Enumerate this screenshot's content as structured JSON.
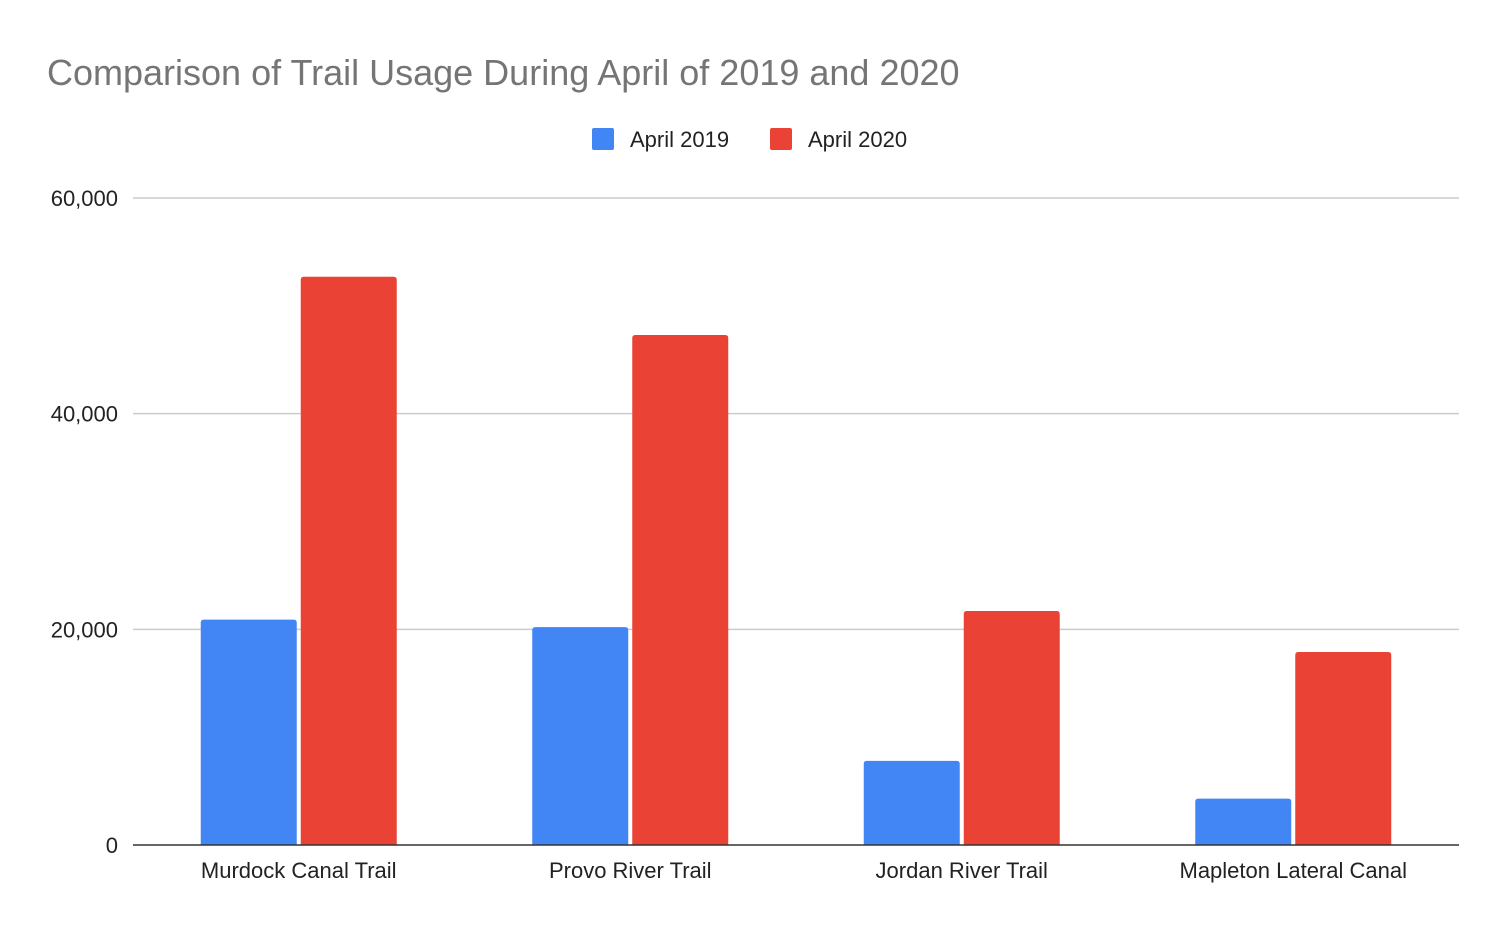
{
  "chart_data": {
    "type": "bar",
    "title": "Comparison of Trail Usage During April of 2019 and 2020",
    "categories": [
      "Murdock Canal Trail",
      "Provo River Trail",
      "Jordan River Trail",
      "Mapleton Lateral Canal"
    ],
    "series": [
      {
        "name": "April 2019",
        "color": "#4285f4",
        "values": [
          20900,
          20200,
          7800,
          4300
        ]
      },
      {
        "name": "April 2020",
        "color": "#ea4335",
        "values": [
          52700,
          47300,
          21700,
          17900
        ]
      }
    ],
    "ylim": [
      0,
      60000
    ],
    "yticks": [
      0,
      20000,
      40000,
      60000
    ],
    "ytick_labels": [
      "0",
      "20,000",
      "40,000",
      "60,000"
    ],
    "grid": true,
    "legend_position": "top-center",
    "xlabel": "",
    "ylabel": ""
  }
}
